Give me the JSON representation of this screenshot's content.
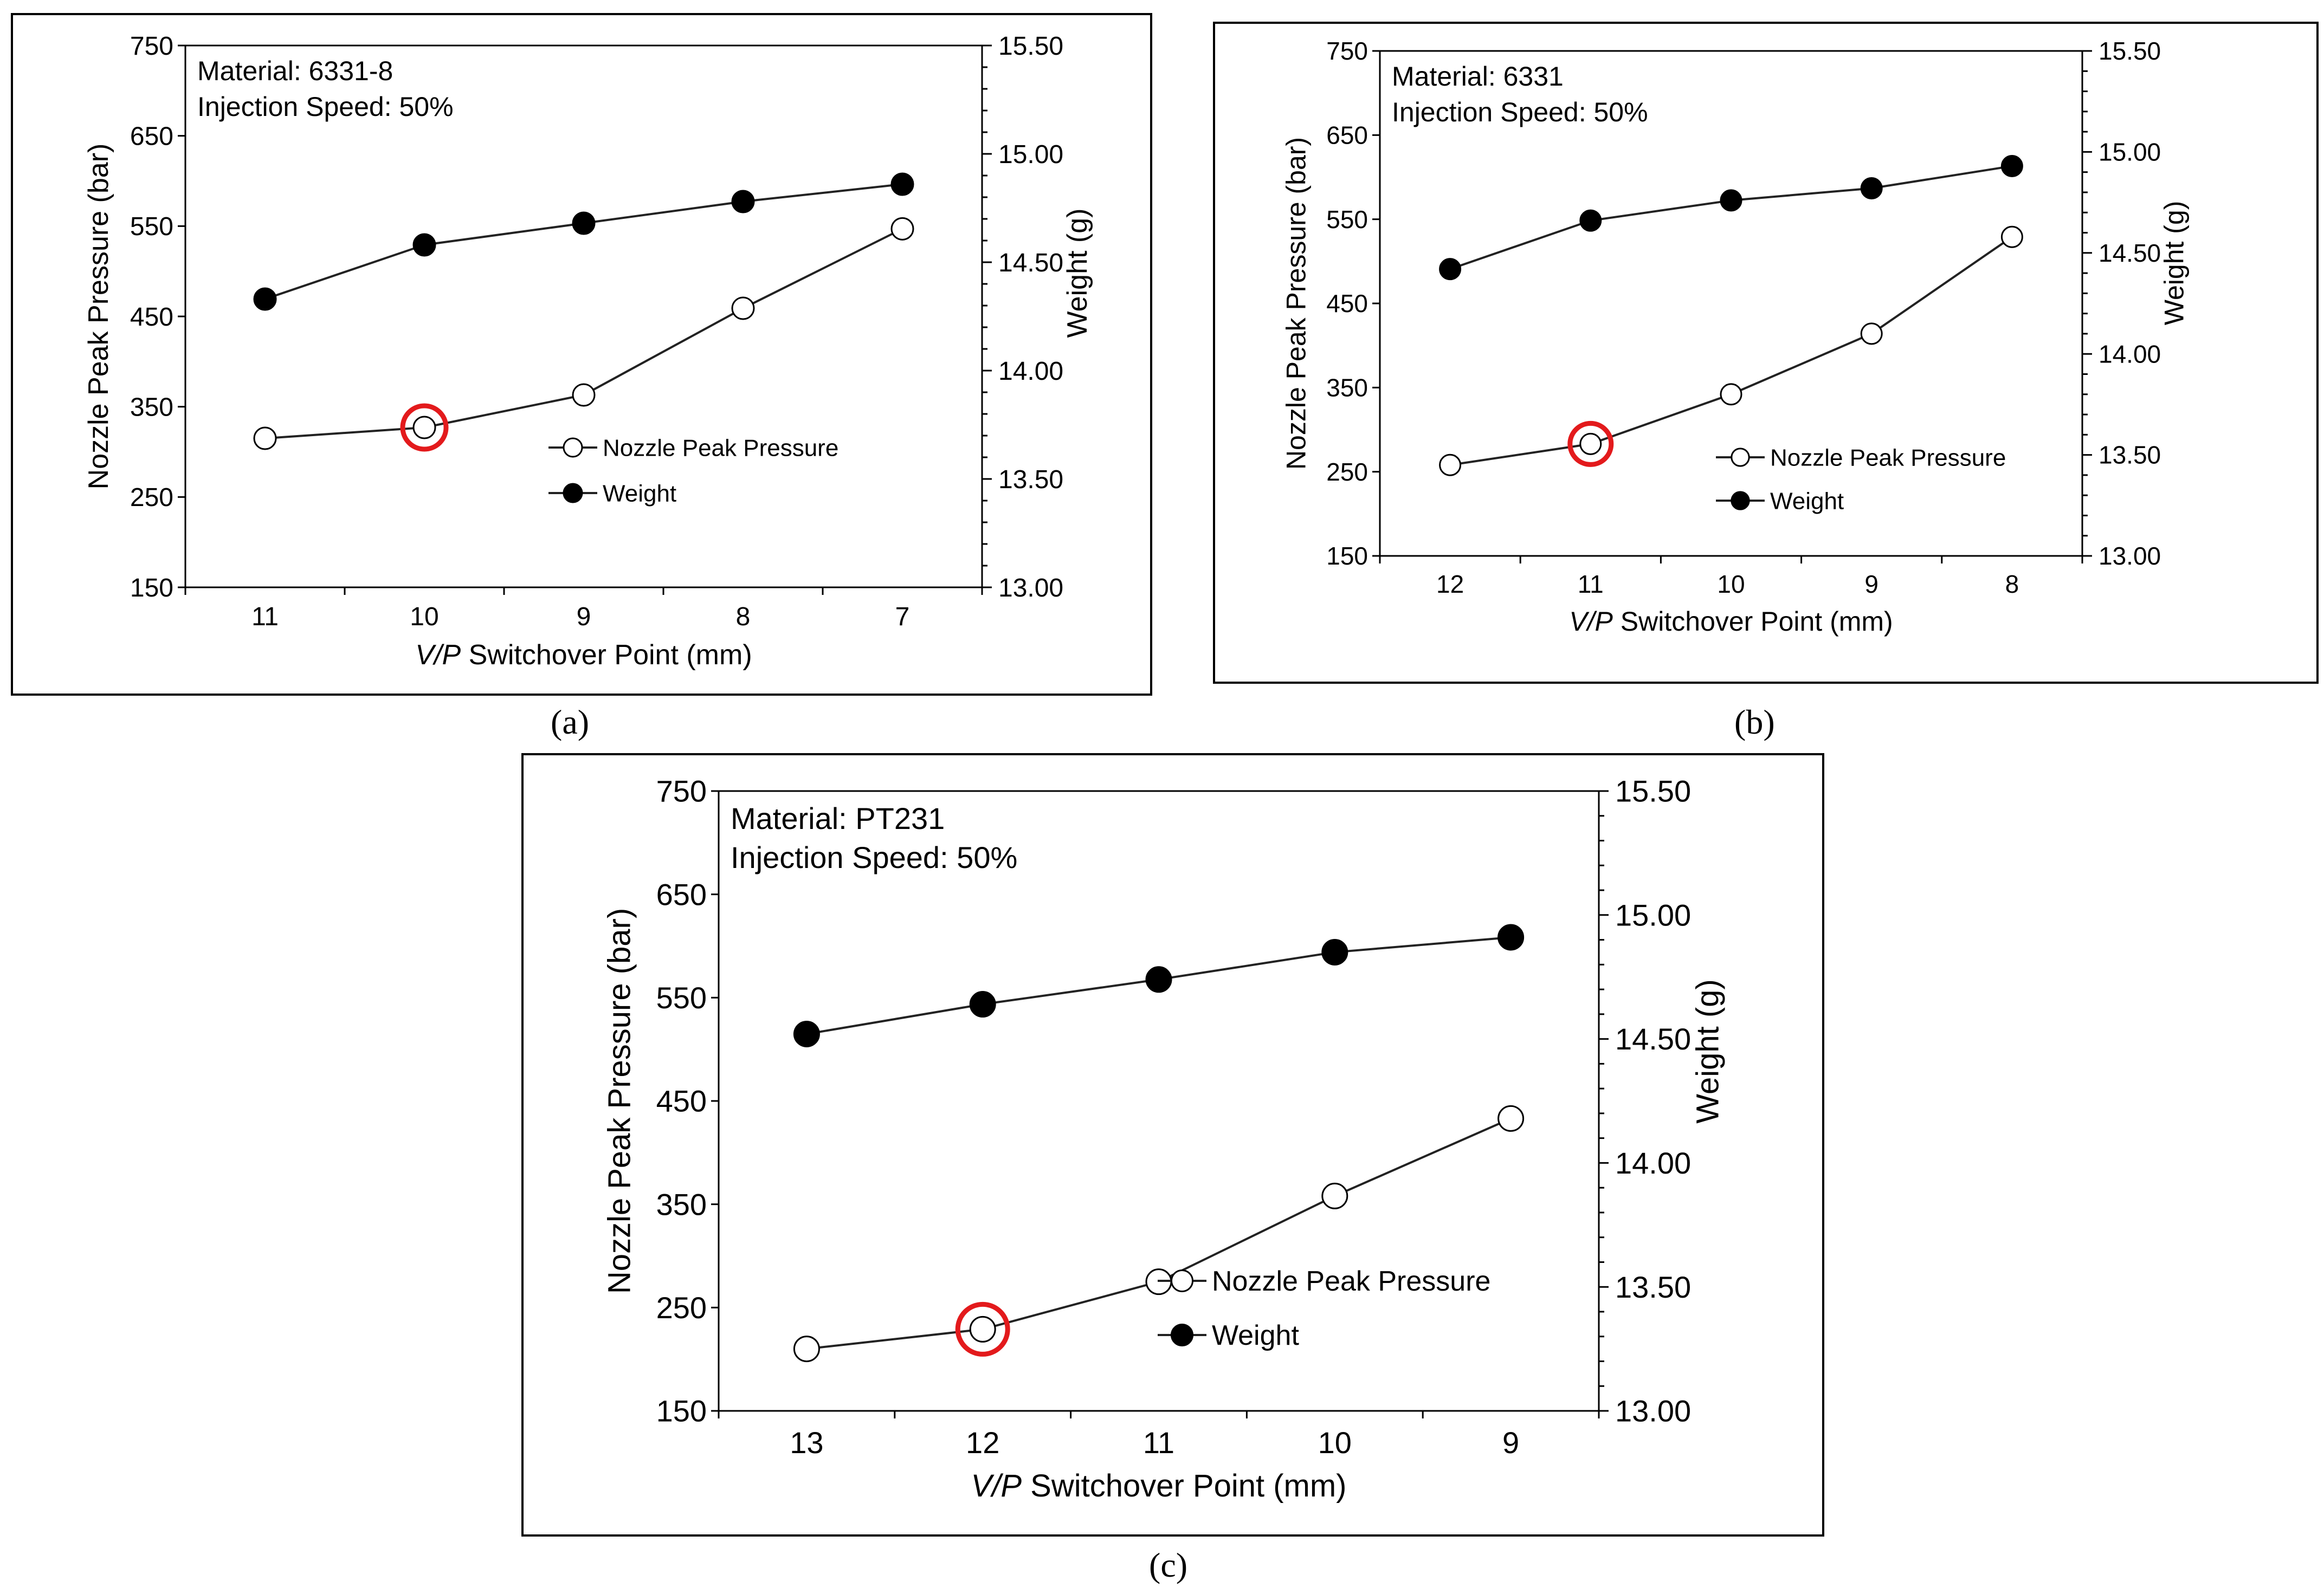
{
  "chart_data": [
    {
      "type": "line",
      "caption": "(a)",
      "material_label": "Material: 6331-8",
      "speed_label": "Injection Speed: 50%",
      "xlabel_italic": "V/P",
      "xlabel_rest": " Switchover Point (mm)",
      "ylabel": "Nozzle Peak Pressure (bar)",
      "y2label": "Weight (g)",
      "categories": [
        "11",
        "10",
        "9",
        "8",
        "7"
      ],
      "ylim": [
        150,
        750
      ],
      "yticks": [
        "150",
        "250",
        "350",
        "450",
        "550",
        "650",
        "750"
      ],
      "y2lim": [
        13.0,
        15.5
      ],
      "y2ticks": [
        "13.00",
        "13.50",
        "14.00",
        "14.50",
        "15.00",
        "15.50"
      ],
      "series": [
        {
          "name": "Nozzle Peak Pressure",
          "axis": "left",
          "marker": "open",
          "values": [
            315,
            327,
            363,
            459,
            547
          ]
        },
        {
          "name": "Weight",
          "axis": "right",
          "marker": "filled",
          "values": [
            14.33,
            14.58,
            14.68,
            14.78,
            14.86
          ]
        }
      ],
      "highlight_index": 1,
      "legend": [
        "Nozzle Peak Pressure",
        "Weight"
      ]
    },
    {
      "type": "line",
      "caption": "(b)",
      "material_label": "Material: 6331",
      "speed_label": "Injection Speed: 50%",
      "xlabel_italic": "V/P",
      "xlabel_rest": " Switchover Point (mm)",
      "ylabel": "Nozzle Peak Pressure (bar)",
      "y2label": "Weight (g)",
      "categories": [
        "12",
        "11",
        "10",
        "9",
        "8"
      ],
      "ylim": [
        150,
        750
      ],
      "yticks": [
        "150",
        "250",
        "350",
        "450",
        "550",
        "650",
        "750"
      ],
      "y2lim": [
        13.0,
        15.5
      ],
      "y2ticks": [
        "13.00",
        "13.50",
        "14.00",
        "14.50",
        "15.00",
        "15.50"
      ],
      "series": [
        {
          "name": "Nozzle Peak Pressure",
          "axis": "left",
          "marker": "open",
          "values": [
            258,
            283,
            342,
            414,
            529
          ]
        },
        {
          "name": "Weight",
          "axis": "right",
          "marker": "filled",
          "values": [
            14.42,
            14.66,
            14.76,
            14.82,
            14.93
          ]
        }
      ],
      "highlight_index": 1,
      "legend": [
        "Nozzle Peak Pressure",
        "Weight"
      ]
    },
    {
      "type": "line",
      "caption": "(c)",
      "material_label": "Material: PT231",
      "speed_label": "Injection Speed: 50%",
      "xlabel_italic": "V/P",
      "xlabel_rest": " Switchover Point (mm)",
      "ylabel": "Nozzle Peak Pressure (bar)",
      "y2label": "Weight (g)",
      "categories": [
        "13",
        "12",
        "11",
        "10",
        "9"
      ],
      "ylim": [
        150,
        750
      ],
      "yticks": [
        "150",
        "250",
        "350",
        "450",
        "550",
        "650",
        "750"
      ],
      "y2lim": [
        13.0,
        15.5
      ],
      "y2ticks": [
        "13.00",
        "13.50",
        "14.00",
        "14.50",
        "15.00",
        "15.50"
      ],
      "series": [
        {
          "name": "Nozzle Peak Pressure",
          "axis": "left",
          "marker": "open",
          "values": [
            210,
            229,
            275,
            358,
            433
          ]
        },
        {
          "name": "Weight",
          "axis": "right",
          "marker": "filled",
          "values": [
            14.52,
            14.64,
            14.74,
            14.85,
            14.91
          ]
        }
      ],
      "highlight_index": 1,
      "legend": [
        "Nozzle Peak Pressure",
        "Weight"
      ]
    }
  ]
}
